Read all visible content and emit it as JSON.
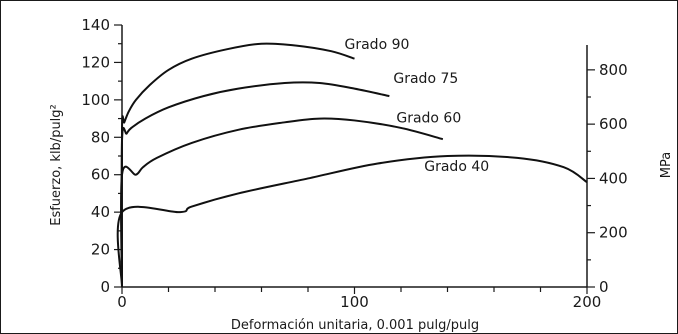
{
  "chart_data": {
    "type": "line",
    "xlabel": "Deformación unitaria, 0.001 pulg/pulg",
    "ylabel": "Esfuerzo, klb/pulg²",
    "y2label": "MPa",
    "xlim": [
      0,
      200
    ],
    "ylim": [
      0,
      140
    ],
    "x_ticks": [
      0,
      100,
      200
    ],
    "x_tick_labels": [
      "0",
      "100",
      "200"
    ],
    "y_ticks": [
      0,
      20,
      40,
      60,
      80,
      100,
      120,
      140
    ],
    "y_tick_labels": [
      "0",
      "20",
      "40",
      "60",
      "80",
      "100",
      "120",
      "140"
    ],
    "y2_ticks_mpa": [
      0,
      200,
      400,
      600,
      800
    ],
    "y2_tick_labels": [
      "0",
      "200",
      "400",
      "600",
      "800"
    ],
    "grid": false,
    "series": [
      {
        "name": "Grado 90",
        "x": [
          0,
          0,
          1,
          3,
          6,
          12,
          20,
          30,
          45,
          60,
          75,
          90,
          100
        ],
        "y": [
          0,
          84,
          88,
          94,
          100,
          108,
          116,
          122,
          127,
          130,
          129,
          126,
          122
        ]
      },
      {
        "name": "Grado 75",
        "x": [
          0,
          0,
          2,
          4,
          10,
          20,
          35,
          50,
          70,
          85,
          100,
          115
        ],
        "y": [
          0,
          78,
          82,
          85,
          90,
          96,
          102,
          106,
          109,
          109,
          106,
          102
        ]
      },
      {
        "name": "Grado 60",
        "x": [
          0,
          0,
          6,
          9,
          15,
          30,
          50,
          70,
          85,
          100,
          120,
          138
        ],
        "y": [
          0,
          60,
          60,
          64,
          69,
          77,
          84,
          88,
          90,
          89,
          85,
          79
        ]
      },
      {
        "name": "Grado 40",
        "x": [
          0,
          0,
          25,
          30,
          50,
          80,
          110,
          140,
          170,
          190,
          200
        ],
        "y": [
          0,
          40,
          40,
          43,
          50,
          58,
          66,
          70,
          69,
          64,
          56
        ]
      }
    ]
  }
}
